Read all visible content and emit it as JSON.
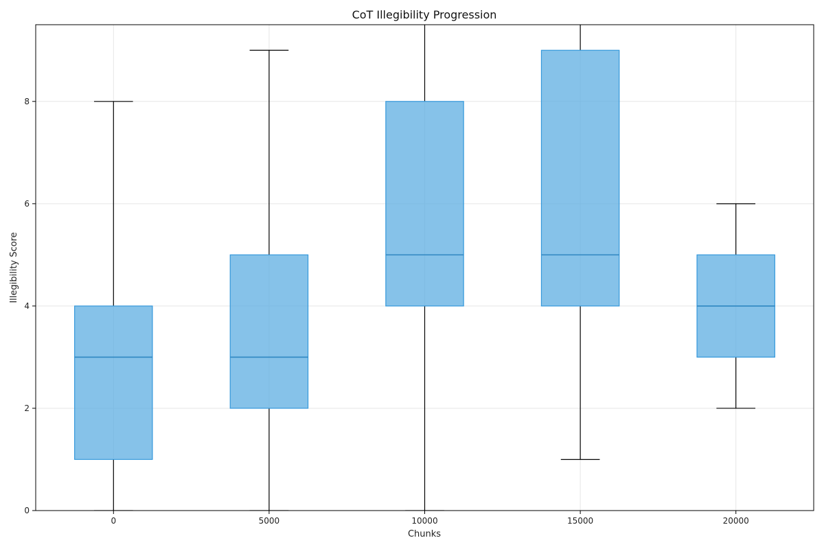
{
  "chart_data": {
    "type": "box",
    "title": "CoT Illegibility Progression",
    "xlabel": "Chunks",
    "ylabel": "Illegibility Score",
    "ylim": [
      0,
      9.5
    ],
    "xlim": [
      -2500,
      22500
    ],
    "grid": true,
    "x_ticks": [
      0,
      5000,
      10000,
      15000,
      20000
    ],
    "y_ticks": [
      0,
      2,
      4,
      6,
      8
    ],
    "colors": {
      "box_fill": "#5dade2",
      "box_edge": "#3498db",
      "median": "#2e86c1",
      "whisker": "#000000"
    },
    "boxes": [
      {
        "x": 0,
        "whisker_low": 0,
        "q1": 1,
        "median": 3,
        "q3": 4,
        "whisker_high": 8
      },
      {
        "x": 5000,
        "whisker_low": 0,
        "q1": 2,
        "median": 3,
        "q3": 5,
        "whisker_high": 9
      },
      {
        "x": 10000,
        "whisker_low": 0,
        "q1": 4,
        "median": 5,
        "q3": 8,
        "whisker_high": 10
      },
      {
        "x": 15000,
        "whisker_low": 1,
        "q1": 4,
        "median": 5,
        "q3": 9,
        "whisker_high": 10
      },
      {
        "x": 20000,
        "whisker_low": 2,
        "q1": 3,
        "median": 4,
        "q3": 5,
        "whisker_high": 6
      }
    ]
  }
}
